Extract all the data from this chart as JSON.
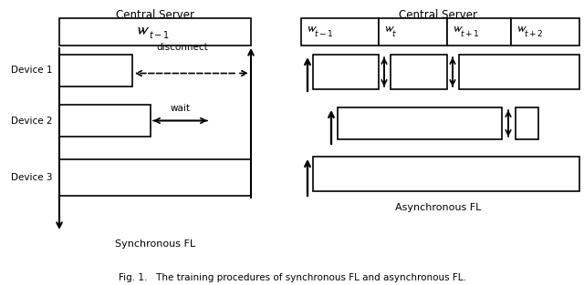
{
  "fig_width": 6.4,
  "fig_height": 3.13,
  "bg_color": "#ffffff",
  "left_title": "Central Server",
  "right_title": "Central Server",
  "left_caption": "Synchronous FL",
  "right_caption": "Asynchronous FL",
  "fig_caption": "Fig. 1.   The training procedures of synchronous FL and asynchronous FL.",
  "lw": 1.2
}
